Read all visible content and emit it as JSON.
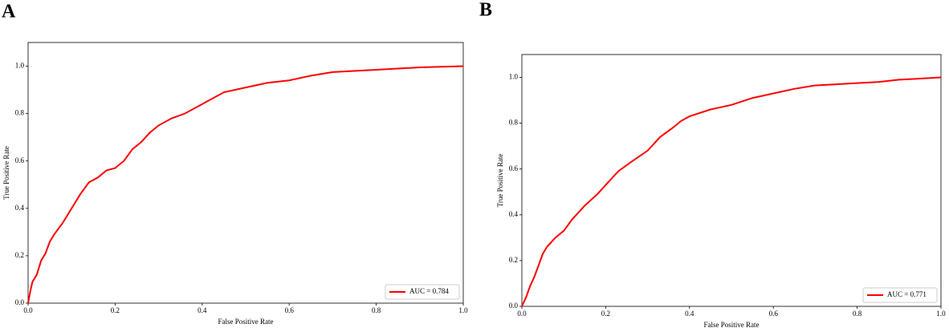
{
  "chart_data": [
    {
      "type": "line",
      "label": "A",
      "xlabel": "False Positive Rate",
      "ylabel": "True Positive Rate",
      "x": [
        0,
        0.005,
        0.01,
        0.02,
        0.03,
        0.04,
        0.05,
        0.06,
        0.08,
        0.1,
        0.12,
        0.14,
        0.16,
        0.18,
        0.2,
        0.22,
        0.24,
        0.26,
        0.28,
        0.3,
        0.33,
        0.36,
        0.4,
        0.45,
        0.5,
        0.55,
        0.6,
        0.65,
        0.7,
        0.8,
        0.9,
        1.0
      ],
      "series": [
        {
          "name": "AUC = 0.784",
          "color": "#ff0000",
          "values": [
            0,
            0.05,
            0.09,
            0.12,
            0.18,
            0.21,
            0.26,
            0.29,
            0.34,
            0.4,
            0.46,
            0.51,
            0.53,
            0.56,
            0.57,
            0.6,
            0.65,
            0.68,
            0.72,
            0.75,
            0.78,
            0.8,
            0.84,
            0.89,
            0.91,
            0.93,
            0.94,
            0.96,
            0.975,
            0.985,
            0.995,
            1.0
          ]
        }
      ],
      "xlim": [
        0,
        1
      ],
      "ylim": [
        0,
        1.1
      ],
      "xticks": [
        {
          "value": 0,
          "label": "0.0"
        },
        0.2,
        0.4,
        0.6,
        0.8,
        {
          "value": 1,
          "label": "1.0"
        }
      ],
      "yticks": [
        {
          "value": 0,
          "label": "0.0"
        },
        0.2,
        0.4,
        0.6,
        0.8,
        {
          "value": 1,
          "label": "1.0"
        }
      ],
      "legend": "lower right"
    },
    {
      "type": "line",
      "label": "B",
      "xlabel": "False Positive Rate",
      "ylabel": "True Positive Rate",
      "x": [
        0,
        0.01,
        0.02,
        0.03,
        0.04,
        0.05,
        0.06,
        0.08,
        0.1,
        0.12,
        0.15,
        0.18,
        0.2,
        0.23,
        0.26,
        0.3,
        0.33,
        0.36,
        0.38,
        0.4,
        0.45,
        0.5,
        0.55,
        0.6,
        0.65,
        0.7,
        0.75,
        0.8,
        0.85,
        0.9,
        0.95,
        1.0
      ],
      "series": [
        {
          "name": "AUC = 0.771",
          "color": "#ff0000",
          "values": [
            0,
            0.04,
            0.09,
            0.13,
            0.18,
            0.23,
            0.26,
            0.3,
            0.33,
            0.38,
            0.44,
            0.49,
            0.53,
            0.59,
            0.63,
            0.68,
            0.74,
            0.78,
            0.81,
            0.83,
            0.86,
            0.88,
            0.91,
            0.93,
            0.95,
            0.965,
            0.97,
            0.975,
            0.98,
            0.99,
            0.995,
            1.0
          ]
        }
      ],
      "xlim": [
        0,
        1
      ],
      "ylim": [
        0,
        1.1
      ],
      "xticks": [
        {
          "value": 0,
          "label": "0.0"
        },
        0.2,
        0.4,
        0.6,
        0.8,
        {
          "value": 1,
          "label": "1.0"
        }
      ],
      "yticks": [
        {
          "value": 0,
          "label": "0.0"
        },
        0.2,
        0.4,
        0.6,
        0.8,
        {
          "value": 1,
          "label": "1.0"
        }
      ],
      "legend": "lower right"
    }
  ]
}
